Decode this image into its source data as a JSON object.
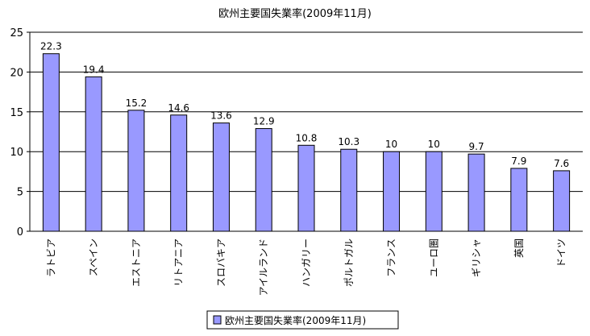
{
  "chart_data": {
    "type": "bar",
    "title": "欧州主要国失業率(2009年11月)",
    "categories": [
      "ラトビア",
      "スペイン",
      "エストニア",
      "リトアニア",
      "スロバキア",
      "アイルランド",
      "ハンガリー",
      "ポルトガル",
      "フランス",
      "ユーロ圏",
      "ギリシャ",
      "英国",
      "ドイツ"
    ],
    "values": [
      22.3,
      19.4,
      15.2,
      14.6,
      13.6,
      12.9,
      10.8,
      10.3,
      10,
      10,
      9.7,
      7.9,
      7.6
    ],
    "value_labels": [
      "22.3",
      "19.4",
      "15.2",
      "14.6",
      "13.6",
      "12.9",
      "10.8",
      "10.3",
      "10",
      "10",
      "9.7",
      "7.9",
      "7.6"
    ],
    "y_ticks": [
      "0",
      "5",
      "10",
      "15",
      "20",
      "25"
    ],
    "ylim": [
      0,
      25
    ],
    "grid": true,
    "legend": {
      "position": "bottom",
      "label": "欧州主要国失業率(2009年11月)"
    },
    "colors": {
      "bar_fill": "#9999ff",
      "bar_stroke": "#000000",
      "grid": "#000000"
    }
  }
}
